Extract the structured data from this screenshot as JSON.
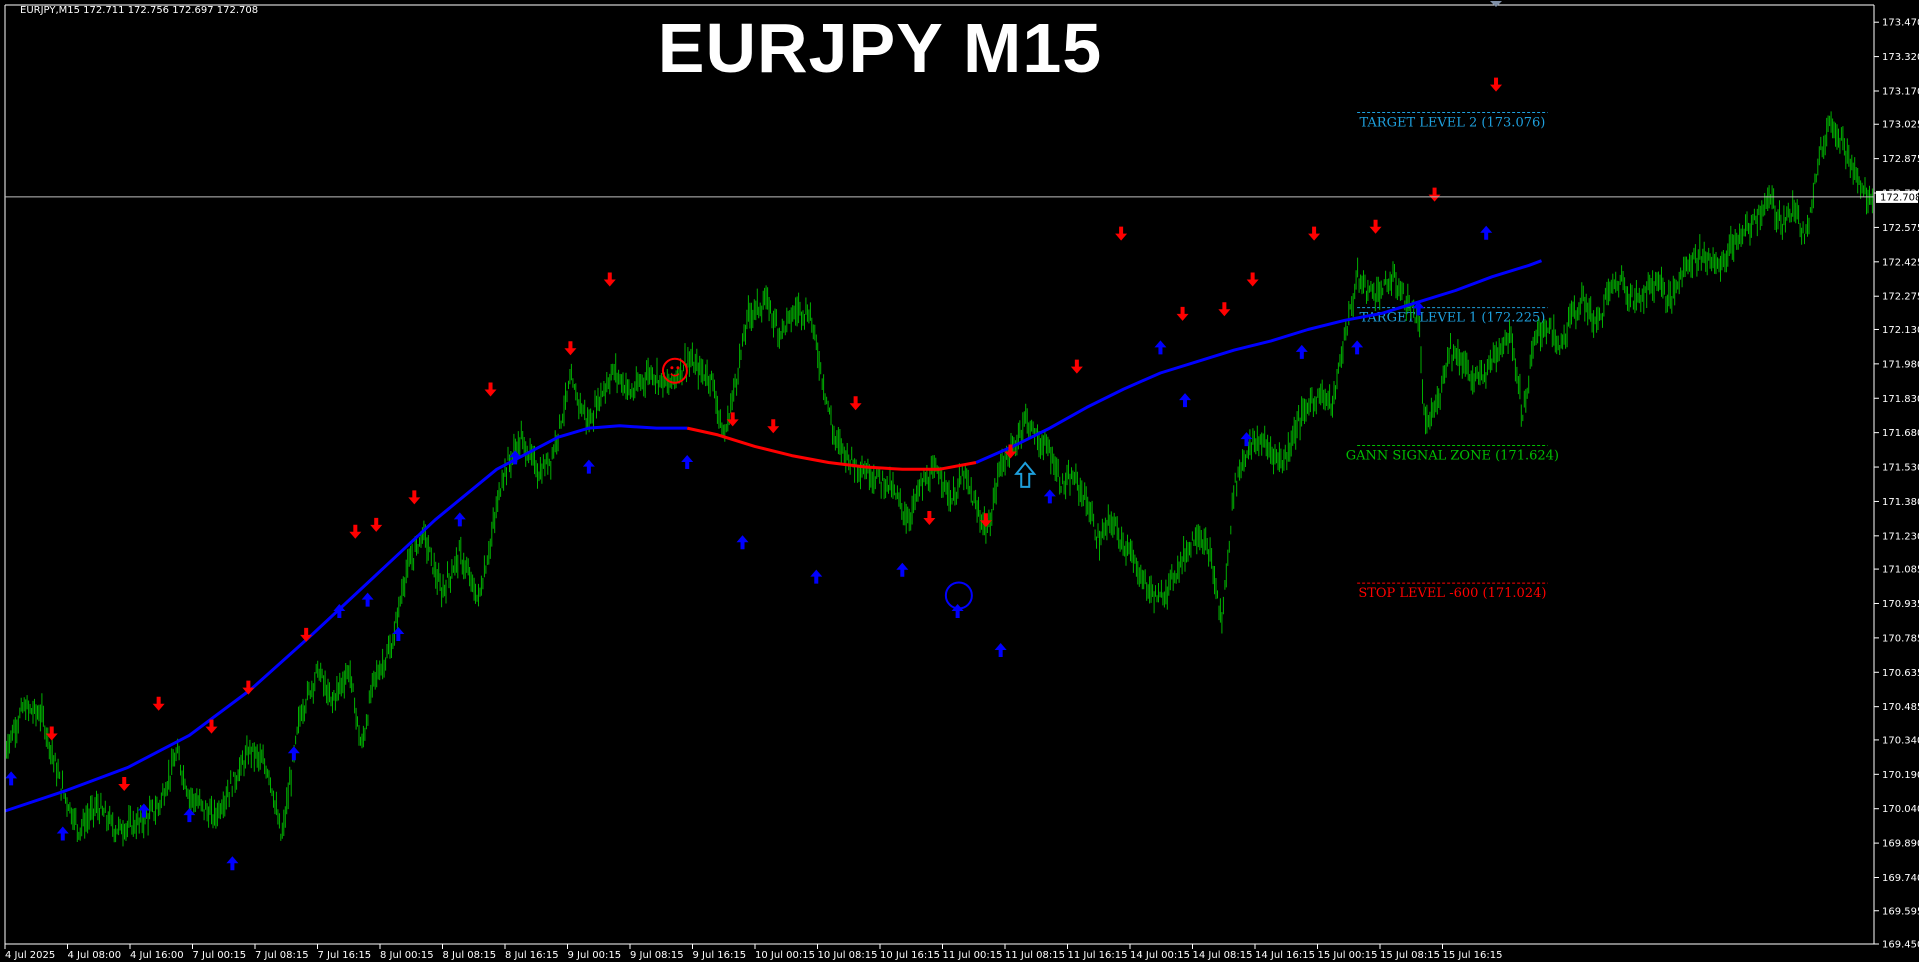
{
  "header": {
    "symbol_info": "EURJPY,M15  172.711 172.756 172.697 172.708",
    "big_title": "EURJPY M15"
  },
  "colors": {
    "background": "#000000",
    "candles": "#00b000",
    "ma_up": "#0000ff",
    "ma_flat": "#ff0000",
    "arrow_up": "#0000ff",
    "arrow_down": "#ff0000",
    "target": "#1e9fdc",
    "gann": "#00c000",
    "stop": "#ff0000",
    "axis": "#ffffff"
  },
  "chart_data": {
    "type": "line",
    "title": "EURJPY M15",
    "ylim": [
      169.45,
      173.545
    ],
    "y_ticks": [
      "173.470",
      "173.320",
      "173.170",
      "173.025",
      "172.875",
      "172.725",
      "172.575",
      "172.425",
      "172.275",
      "172.130",
      "171.980",
      "171.830",
      "171.680",
      "171.530",
      "171.380",
      "171.230",
      "171.085",
      "170.935",
      "170.785",
      "170.635",
      "170.485",
      "170.340",
      "170.190",
      "170.040",
      "169.890",
      "169.740",
      "169.595",
      "169.450"
    ],
    "current_price": "172.708",
    "x_labels": [
      "4 Jul 2025",
      "4 Jul 08:00",
      "4 Jul 16:00",
      "7 Jul 00:15",
      "7 Jul 08:15",
      "7 Jul 16:15",
      "8 Jul 00:15",
      "8 Jul 08:15",
      "8 Jul 16:15",
      "9 Jul 00:15",
      "9 Jul 08:15",
      "9 Jul 16:15",
      "10 Jul 00:15",
      "10 Jul 08:15",
      "10 Jul 16:15",
      "11 Jul 00:15",
      "11 Jul 08:15",
      "11 Jul 16:15",
      "14 Jul 00:15",
      "14 Jul 08:15",
      "14 Jul 16:15",
      "15 Jul 00:15",
      "15 Jul 08:15",
      "15 Jul 16:15"
    ],
    "price_series": {
      "name": "EURJPY",
      "points": [
        [
          0,
          170.3
        ],
        [
          15,
          170.48
        ],
        [
          30,
          170.45
        ],
        [
          45,
          170.15
        ],
        [
          60,
          169.95
        ],
        [
          75,
          170.05
        ],
        [
          90,
          169.95
        ],
        [
          110,
          169.98
        ],
        [
          125,
          170.05
        ],
        [
          140,
          170.28
        ],
        [
          150,
          170.1
        ],
        [
          170,
          170.0
        ],
        [
          185,
          170.15
        ],
        [
          200,
          170.3
        ],
        [
          215,
          170.2
        ],
        [
          225,
          169.9
        ],
        [
          240,
          170.45
        ],
        [
          255,
          170.65
        ],
        [
          265,
          170.5
        ],
        [
          280,
          170.65
        ],
        [
          290,
          170.3
        ],
        [
          300,
          170.6
        ],
        [
          315,
          170.75
        ],
        [
          325,
          171.05
        ],
        [
          340,
          171.25
        ],
        [
          355,
          170.98
        ],
        [
          370,
          171.15
        ],
        [
          385,
          170.95
        ],
        [
          395,
          171.2
        ],
        [
          405,
          171.5
        ],
        [
          420,
          171.65
        ],
        [
          435,
          171.5
        ],
        [
          445,
          171.58
        ],
        [
          460,
          171.9
        ],
        [
          475,
          171.72
        ],
        [
          485,
          171.85
        ],
        [
          495,
          171.95
        ],
        [
          510,
          171.85
        ],
        [
          525,
          171.95
        ],
        [
          540,
          171.88
        ],
        [
          555,
          172.0
        ],
        [
          565,
          171.95
        ],
        [
          575,
          171.92
        ],
        [
          585,
          171.65
        ],
        [
          595,
          171.92
        ],
        [
          605,
          172.2
        ],
        [
          620,
          172.25
        ],
        [
          630,
          172.12
        ],
        [
          645,
          172.22
        ],
        [
          655,
          172.2
        ],
        [
          665,
          171.92
        ],
        [
          675,
          171.65
        ],
        [
          690,
          171.55
        ],
        [
          705,
          171.5
        ],
        [
          720,
          171.45
        ],
        [
          735,
          171.3
        ],
        [
          745,
          171.45
        ],
        [
          760,
          171.52
        ],
        [
          770,
          171.38
        ],
        [
          780,
          171.5
        ],
        [
          790,
          171.35
        ],
        [
          800,
          171.25
        ],
        [
          810,
          171.55
        ],
        [
          820,
          171.6
        ],
        [
          830,
          171.75
        ],
        [
          840,
          171.65
        ],
        [
          850,
          171.6
        ],
        [
          860,
          171.45
        ],
        [
          870,
          171.48
        ],
        [
          880,
          171.38
        ],
        [
          890,
          171.2
        ],
        [
          900,
          171.3
        ],
        [
          910,
          171.2
        ],
        [
          920,
          171.1
        ],
        [
          930,
          171.0
        ],
        [
          940,
          170.95
        ],
        [
          950,
          171.05
        ],
        [
          960,
          171.15
        ],
        [
          970,
          171.25
        ],
        [
          980,
          171.15
        ],
        [
          990,
          170.85
        ],
        [
          1000,
          171.45
        ],
        [
          1010,
          171.6
        ],
        [
          1020,
          171.65
        ],
        [
          1030,
          171.6
        ],
        [
          1040,
          171.55
        ],
        [
          1050,
          171.7
        ],
        [
          1060,
          171.8
        ],
        [
          1070,
          171.85
        ],
        [
          1080,
          171.8
        ],
        [
          1090,
          172.1
        ],
        [
          1100,
          172.35
        ],
        [
          1110,
          172.3
        ],
        [
          1120,
          172.3
        ],
        [
          1130,
          172.35
        ],
        [
          1140,
          172.25
        ],
        [
          1150,
          172.18
        ],
        [
          1155,
          171.7
        ],
        [
          1165,
          171.8
        ],
        [
          1175,
          172.05
        ],
        [
          1185,
          172.0
        ],
        [
          1195,
          171.9
        ],
        [
          1205,
          171.95
        ],
        [
          1215,
          172.05
        ],
        [
          1225,
          172.12
        ],
        [
          1235,
          171.75
        ],
        [
          1245,
          172.1
        ],
        [
          1255,
          172.15
        ],
        [
          1265,
          172.05
        ],
        [
          1275,
          172.2
        ],
        [
          1285,
          172.25
        ],
        [
          1295,
          172.15
        ],
        [
          1305,
          172.3
        ],
        [
          1315,
          172.35
        ],
        [
          1325,
          172.25
        ],
        [
          1335,
          172.3
        ],
        [
          1345,
          172.35
        ],
        [
          1355,
          172.25
        ],
        [
          1365,
          172.4
        ],
        [
          1375,
          172.45
        ],
        [
          1385,
          172.45
        ],
        [
          1395,
          172.4
        ],
        [
          1405,
          172.5
        ],
        [
          1415,
          172.55
        ],
        [
          1425,
          172.62
        ],
        [
          1435,
          172.7
        ],
        [
          1445,
          172.6
        ],
        [
          1455,
          172.65
        ],
        [
          1465,
          172.55
        ],
        [
          1475,
          172.85
        ],
        [
          1485,
          173.05
        ],
        [
          1495,
          172.95
        ],
        [
          1505,
          172.8
        ],
        [
          1515,
          172.7
        ],
        [
          1520,
          172.72
        ]
      ]
    },
    "ma_series": {
      "name": "MA",
      "points": [
        [
          0,
          170.03
        ],
        [
          50,
          170.12
        ],
        [
          100,
          170.22
        ],
        [
          150,
          170.36
        ],
        [
          200,
          170.56
        ],
        [
          250,
          170.8
        ],
        [
          300,
          171.05
        ],
        [
          350,
          171.3
        ],
        [
          400,
          171.52
        ],
        [
          450,
          171.66
        ],
        [
          475,
          171.7
        ],
        [
          500,
          171.71
        ],
        [
          530,
          171.7
        ],
        [
          555,
          171.7
        ],
        [
          580,
          171.67
        ],
        [
          610,
          171.62
        ],
        [
          640,
          171.58
        ],
        [
          670,
          171.55
        ],
        [
          700,
          171.53
        ],
        [
          730,
          171.52
        ],
        [
          760,
          171.52
        ],
        [
          790,
          171.55
        ],
        [
          820,
          171.62
        ],
        [
          850,
          171.7
        ],
        [
          880,
          171.79
        ],
        [
          910,
          171.87
        ],
        [
          940,
          171.94
        ],
        [
          970,
          171.99
        ],
        [
          1000,
          172.04
        ],
        [
          1030,
          172.08
        ],
        [
          1060,
          172.13
        ],
        [
          1090,
          172.17
        ],
        [
          1120,
          172.2
        ],
        [
          1150,
          172.25
        ],
        [
          1180,
          172.3
        ],
        [
          1210,
          172.36
        ],
        [
          1240,
          172.41
        ],
        [
          1250,
          172.43
        ]
      ],
      "flat_range": [
        555,
        790
      ]
    },
    "signals_up": [
      [
        5,
        170.22
      ],
      [
        47,
        169.98
      ],
      [
        113,
        170.08
      ],
      [
        150,
        170.06
      ],
      [
        185,
        169.85
      ],
      [
        235,
        170.33
      ],
      [
        272,
        170.95
      ],
      [
        295,
        171.0
      ],
      [
        320,
        170.85
      ],
      [
        370,
        171.35
      ],
      [
        415,
        171.62
      ],
      [
        475,
        171.58
      ],
      [
        555,
        171.6
      ],
      [
        600,
        171.25
      ],
      [
        660,
        171.1
      ],
      [
        730,
        171.13
      ],
      [
        775,
        170.95
      ],
      [
        810,
        170.78
      ],
      [
        850,
        171.45
      ],
      [
        940,
        172.1
      ],
      [
        960,
        171.87
      ],
      [
        1010,
        171.7
      ],
      [
        1055,
        172.08
      ],
      [
        1100,
        172.1
      ],
      [
        1150,
        172.27
      ],
      [
        1205,
        172.6
      ]
    ],
    "signals_down": [
      [
        38,
        170.32
      ],
      [
        97,
        170.1
      ],
      [
        125,
        170.45
      ],
      [
        168,
        170.35
      ],
      [
        198,
        170.52
      ],
      [
        245,
        170.75
      ],
      [
        285,
        171.2
      ],
      [
        302,
        171.23
      ],
      [
        333,
        171.35
      ],
      [
        395,
        171.82
      ],
      [
        460,
        172.0
      ],
      [
        492,
        172.3
      ],
      [
        592,
        171.69
      ],
      [
        625,
        171.66
      ],
      [
        692,
        171.76
      ],
      [
        752,
        171.26
      ],
      [
        798,
        171.25
      ],
      [
        818,
        171.55
      ],
      [
        872,
        171.92
      ],
      [
        908,
        172.5
      ],
      [
        958,
        172.15
      ],
      [
        992,
        172.17
      ],
      [
        1015,
        172.3
      ],
      [
        1065,
        172.5
      ],
      [
        1115,
        172.53
      ],
      [
        1163,
        172.67
      ],
      [
        1213,
        173.15
      ]
    ],
    "special_markers": [
      {
        "type": "smiley-circle",
        "x": 545,
        "y": 171.95,
        "color": "#ff0000"
      },
      {
        "type": "circle",
        "x": 776,
        "y": 170.97,
        "color": "#0000ff"
      },
      {
        "type": "hollow-up-arrow",
        "x": 830,
        "y": 171.5,
        "color": "#1e9fdc"
      }
    ],
    "levels": [
      {
        "label": "TARGET LEVEL 2 (173.076)",
        "value": 173.076,
        "color": "#1e9fdc",
        "x_start": 1100,
        "x_end": 1255
      },
      {
        "label": "TARGET LEVEL 1 (172.225)",
        "value": 172.225,
        "color": "#1e9fdc",
        "x_start": 1100,
        "x_end": 1255
      },
      {
        "label": "GANN SIGNAL ZONE (171.624)",
        "value": 171.624,
        "color": "#00c000",
        "x_start": 1100,
        "x_end": 1255
      },
      {
        "label": "STOP LEVEL -600 (171.024)",
        "value": 171.024,
        "color": "#ff0000",
        "x_start": 1100,
        "x_end": 1255
      }
    ]
  }
}
